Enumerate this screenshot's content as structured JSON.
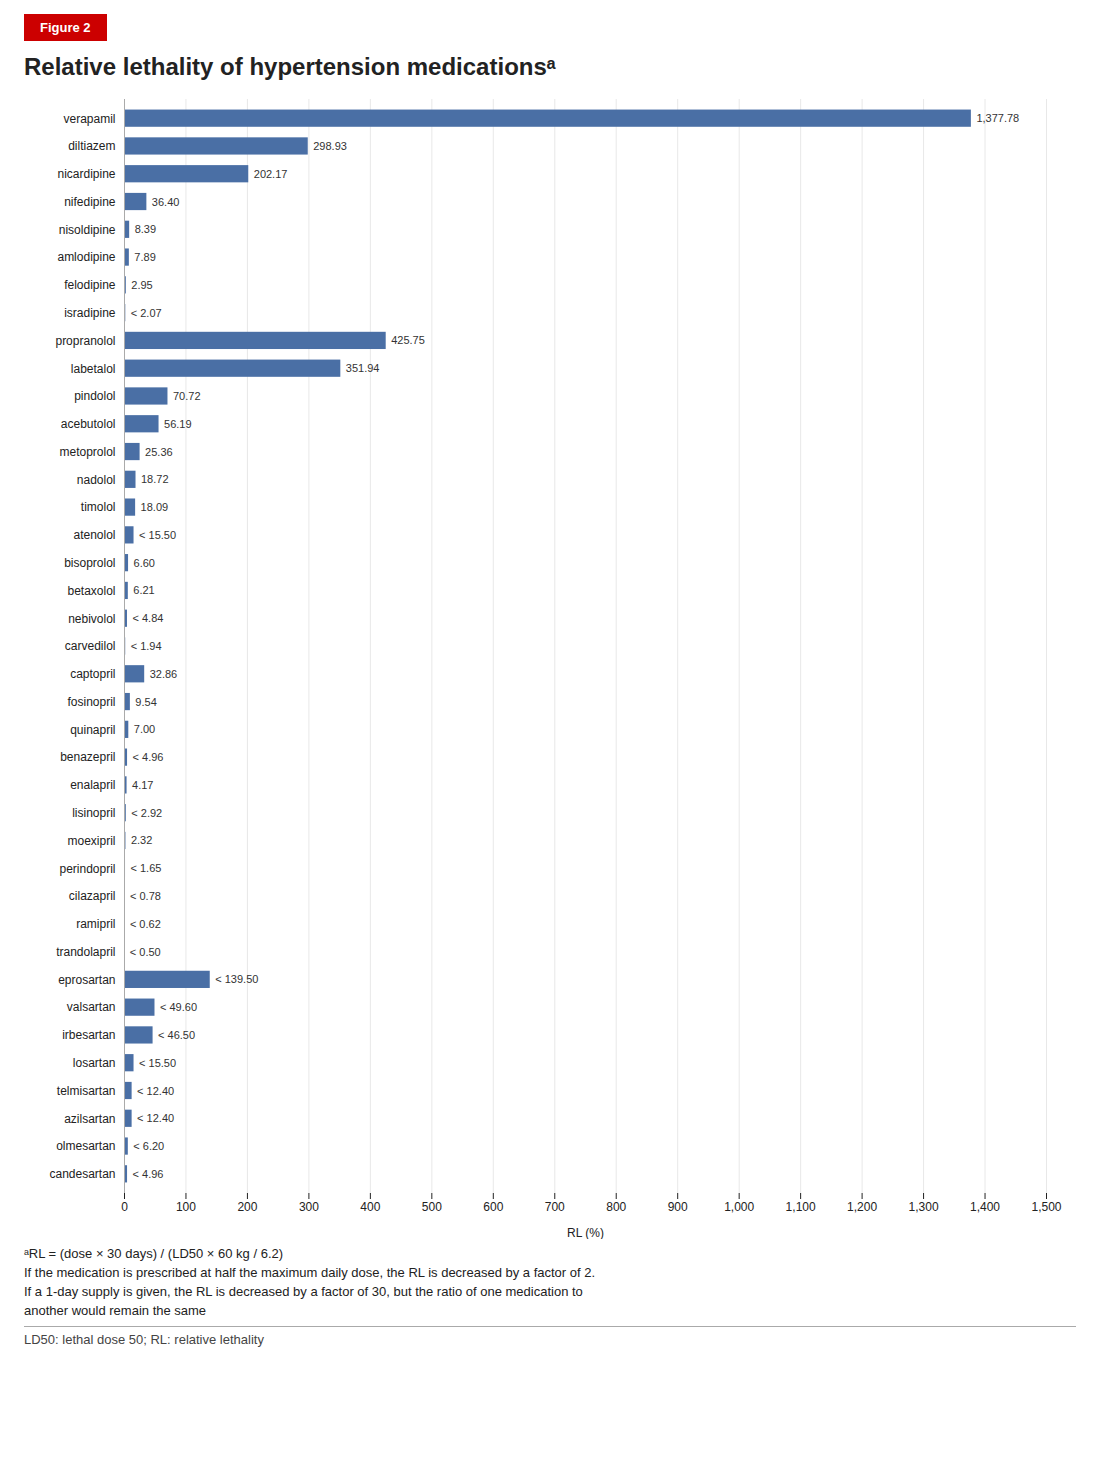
{
  "chart_data": {
    "type": "bar",
    "orientation": "horizontal",
    "title": "Relative lethality of hypertension medicationsᵃ",
    "xlabel": "RL (%)",
    "color": "#4a6fa5",
    "categories": [
      "verapamil",
      "diltiazem",
      "nicardipine",
      "nifedipine",
      "nisoldipine",
      "amlodipine",
      "felodipine",
      "isradipine",
      "propranolol",
      "labetalol",
      "pindolol",
      "acebutolol",
      "metoprolol",
      "nadolol",
      "timolol",
      "atenolol",
      "bisoprolol",
      "betaxolol",
      "nebivolol",
      "carvedilol",
      "captopril",
      "fosinopril",
      "quinapril",
      "benazepril",
      "enalapril",
      "lisinopril",
      "moexipril",
      "perindopril",
      "cilazapril",
      "ramipril",
      "trandolapril",
      "eprosartan",
      "valsartan",
      "irbesartan",
      "losartan",
      "telmisartan",
      "azilsartan",
      "olmesartan",
      "candesartan"
    ],
    "values": [
      1377.78,
      298.93,
      202.17,
      36.4,
      8.39,
      7.89,
      2.95,
      2.07,
      425.75,
      351.94,
      70.72,
      56.19,
      25.36,
      18.72,
      18.09,
      15.5,
      6.6,
      6.21,
      4.84,
      1.94,
      32.86,
      9.54,
      7.0,
      4.96,
      4.17,
      2.92,
      2.32,
      1.65,
      0.78,
      0.62,
      0.5,
      139.5,
      49.6,
      46.5,
      15.5,
      12.4,
      12.4,
      6.2,
      4.96
    ],
    "value_labels": [
      "1,377.78",
      "298.93",
      "202.17",
      "36.40",
      "8.39",
      "7.89",
      "2.95",
      "< 2.07",
      "425.75",
      "351.94",
      "70.72",
      "56.19",
      "25.36",
      "18.72",
      "18.09",
      "< 15.50",
      "6.60",
      "6.21",
      "< 4.84",
      "< 1.94",
      "32.86",
      "9.54",
      "7.00",
      "< 4.96",
      "4.17",
      "< 2.92",
      "2.32",
      "< 1.65",
      "< 0.78",
      "< 0.62",
      "< 0.50",
      "< 139.50",
      "< 49.60",
      "< 46.50",
      "< 15.50",
      "< 12.40",
      "< 12.40",
      "< 6.20",
      "< 4.96"
    ],
    "data_labels": true,
    "xlim": [
      0,
      1500
    ],
    "xticks": [
      0,
      100,
      200,
      300,
      400,
      500,
      600,
      700,
      800,
      900,
      {
        "value": 1000,
        "label": "1,000"
      },
      {
        "value": 1100,
        "label": "1,100"
      },
      {
        "value": 1200,
        "label": "1,200"
      },
      {
        "value": 1300,
        "label": "1,300"
      },
      {
        "value": 1400,
        "label": "1,400"
      },
      {
        "value": 1500,
        "label": "1,500"
      }
    ],
    "grid": true,
    "annotations": [
      "Figure 2",
      "ᵃRL = (dose × 30 days) / (LD50 × 60 kg / 6.2)",
      "If the medication is prescribed at half the maximum daily dose, the RL is decreased by a factor of 2.",
      "If a 1-day supply is given, the RL is decreased by a factor of 30, but the ratio of one medication to",
      "another would remain the same",
      "LD50: lethal dose 50; RL: relative lethality"
    ]
  }
}
